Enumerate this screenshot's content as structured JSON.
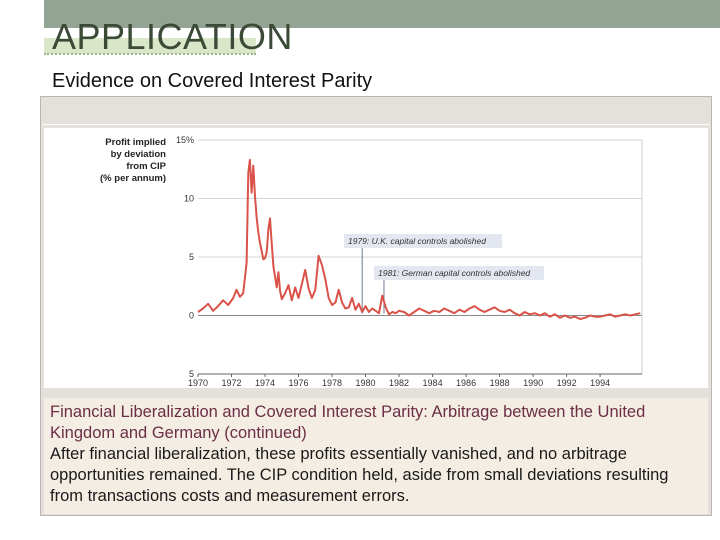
{
  "slide": {
    "title": "APPLICATION",
    "subtitle": "Evidence on Covered Interest Parity"
  },
  "caption": {
    "title": "Financial Liberalization and Covered Interest Parity: Arbitrage between the United Kingdom and Germany (continued)",
    "body": "After financial liberalization, these profits essentially vanished, and no arbitrage opportunities remained. The CIP condition held, aside from small deviations resulting from transactions costs and measurement errors."
  },
  "chart_data": {
    "type": "line",
    "title": "",
    "ylabel_lines": [
      "Profit implied",
      "by deviation",
      "from CIP",
      "(% per annum)"
    ],
    "y_tick_labels": [
      "15%",
      "10",
      "5",
      "0",
      "5"
    ],
    "y_tick_values": [
      15,
      10,
      5,
      0,
      -5
    ],
    "x_tick_labels": [
      "1970",
      "1972",
      "1974",
      "1976",
      "1978",
      "1980",
      "1982",
      "1984",
      "1986",
      "1988",
      "1990",
      "1992",
      "1994"
    ],
    "x_tick_values": [
      1970,
      1972,
      1974,
      1976,
      1978,
      1980,
      1982,
      1984,
      1986,
      1988,
      1990,
      1992,
      1994
    ],
    "xlim": [
      1970,
      1996.5
    ],
    "ylim": [
      -5,
      15
    ],
    "grid": true,
    "line_color": "#d9534a",
    "annotations": [
      {
        "text": "1979: U.K. capital controls abolished",
        "year": 1979.8
      },
      {
        "text": "1981: German capital controls abolished",
        "year": 1981.1
      }
    ],
    "series": [
      {
        "x": [
          1970.0,
          1970.3,
          1970.6,
          1970.9,
          1971.2,
          1971.5,
          1971.8,
          1972.1,
          1972.3,
          1972.5,
          1972.7,
          1972.9,
          1973.0,
          1973.1,
          1973.2,
          1973.3,
          1973.4,
          1973.5,
          1973.6,
          1973.7,
          1973.8,
          1973.9,
          1974.0,
          1974.1,
          1974.2,
          1974.3,
          1974.4,
          1974.5,
          1974.6,
          1974.7,
          1974.8,
          1974.9,
          1975.0,
          1975.2,
          1975.4,
          1975.6,
          1975.8,
          1976.0,
          1976.2,
          1976.4,
          1976.6,
          1976.8,
          1977.0,
          1977.2,
          1977.4,
          1977.6,
          1977.8,
          1978.0,
          1978.2,
          1978.4,
          1978.6,
          1978.8,
          1979.0,
          1979.2,
          1979.4,
          1979.6,
          1979.8,
          1980.0,
          1980.2,
          1980.4,
          1980.6,
          1980.8,
          1981.0,
          1981.2,
          1981.4,
          1981.6,
          1981.8,
          1982.0,
          1982.3,
          1982.6,
          1982.9,
          1983.2,
          1983.5,
          1983.8,
          1984.1,
          1984.4,
          1984.7,
          1985.0,
          1985.3,
          1985.6,
          1985.9,
          1986.2,
          1986.5,
          1986.8,
          1987.1,
          1987.4,
          1987.7,
          1988.0,
          1988.3,
          1988.6,
          1988.9,
          1989.2,
          1989.5,
          1989.8,
          1990.1,
          1990.4,
          1990.7,
          1991.0,
          1991.3,
          1991.6,
          1991.9,
          1992.2,
          1992.5,
          1992.8,
          1993.1,
          1993.4,
          1993.7,
          1994.0,
          1994.3,
          1994.6,
          1994.9,
          1995.2,
          1995.5,
          1995.8,
          1996.1,
          1996.4
        ],
        "y": [
          0.3,
          0.6,
          1.0,
          0.4,
          0.8,
          1.3,
          0.9,
          1.5,
          2.2,
          1.6,
          1.9,
          4.5,
          12.2,
          13.3,
          10.5,
          12.8,
          10.2,
          8.4,
          7.1,
          6.2,
          5.5,
          4.8,
          4.9,
          5.4,
          7.4,
          8.3,
          6.2,
          4.2,
          3.3,
          2.4,
          3.7,
          2.1,
          1.4,
          1.9,
          2.6,
          1.3,
          2.4,
          1.5,
          2.7,
          3.9,
          2.3,
          1.5,
          2.2,
          5.1,
          4.3,
          3.1,
          1.5,
          0.9,
          1.1,
          2.2,
          1.1,
          0.6,
          0.7,
          1.5,
          0.5,
          1.0,
          0.3,
          0.8,
          0.3,
          0.6,
          0.4,
          0.2,
          1.7,
          0.7,
          0.1,
          0.3,
          0.2,
          0.4,
          0.3,
          0.0,
          0.3,
          0.6,
          0.4,
          0.2,
          0.4,
          0.3,
          0.6,
          0.4,
          0.2,
          0.5,
          0.3,
          0.6,
          0.8,
          0.5,
          0.3,
          0.5,
          0.7,
          0.4,
          0.3,
          0.5,
          0.2,
          0.0,
          0.3,
          0.1,
          0.2,
          0.0,
          0.2,
          -0.1,
          0.1,
          -0.2,
          0.0,
          -0.2,
          -0.1,
          -0.3,
          -0.2,
          0.0,
          -0.1,
          -0.1,
          0.0,
          0.1,
          -0.1,
          0.0,
          0.1,
          0.0,
          0.1,
          0.2
        ]
      }
    ]
  }
}
